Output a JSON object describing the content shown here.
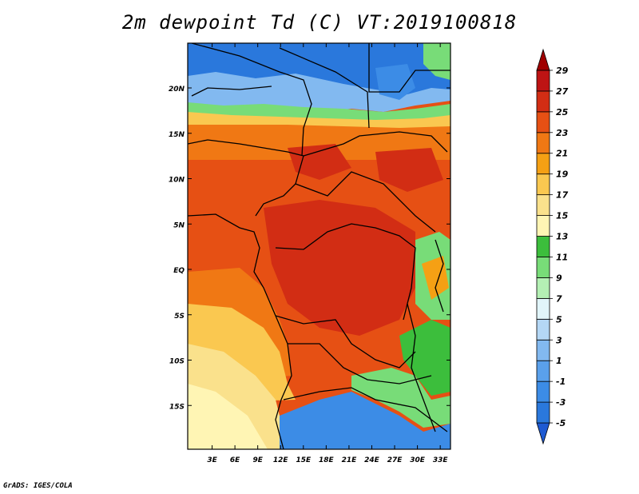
{
  "title": "2m dewpoint Td (C) VT:2019100818",
  "credit": "GrADS: IGES/COLA",
  "map": {
    "lat_labels": [
      {
        "text": "20N",
        "lat": 20
      },
      {
        "text": "15N",
        "lat": 15
      },
      {
        "text": "10N",
        "lat": 10
      },
      {
        "text": "5N",
        "lat": 5
      },
      {
        "text": "EQ",
        "lat": 0
      },
      {
        "text": "5S",
        "lat": -5
      },
      {
        "text": "10S",
        "lat": -10
      },
      {
        "text": "15S",
        "lat": -15
      }
    ],
    "lon_labels": [
      {
        "text": "3E",
        "lon": 3
      },
      {
        "text": "6E",
        "lon": 6
      },
      {
        "text": "9E",
        "lon": 9
      },
      {
        "text": "12E",
        "lon": 12
      },
      {
        "text": "15E",
        "lon": 15
      },
      {
        "text": "18E",
        "lon": 18
      },
      {
        "text": "21E",
        "lon": 21
      },
      {
        "text": "24E",
        "lon": 24
      },
      {
        "text": "27E",
        "lon": 27
      },
      {
        "text": "30E",
        "lon": 30
      },
      {
        "text": "33E",
        "lon": 33
      }
    ]
  },
  "colorbar": {
    "levels": [
      "-5",
      "-3",
      "-1",
      "1",
      "3",
      "5",
      "7",
      "9",
      "11",
      "13",
      "15",
      "17",
      "19",
      "21",
      "23",
      "25",
      "27",
      "29"
    ],
    "colors": [
      "#1e5ad2",
      "#2a78dc",
      "#3c8ce6",
      "#5aa0eb",
      "#82b9f0",
      "#b4d7f5",
      "#e1f5fa",
      "#b4f0b4",
      "#78dc78",
      "#3cbe3c",
      "#fff5b4",
      "#fae18c",
      "#fac850",
      "#f5a014",
      "#f07814",
      "#e65014",
      "#d22d14",
      "#be1414",
      "#a00000"
    ]
  }
}
